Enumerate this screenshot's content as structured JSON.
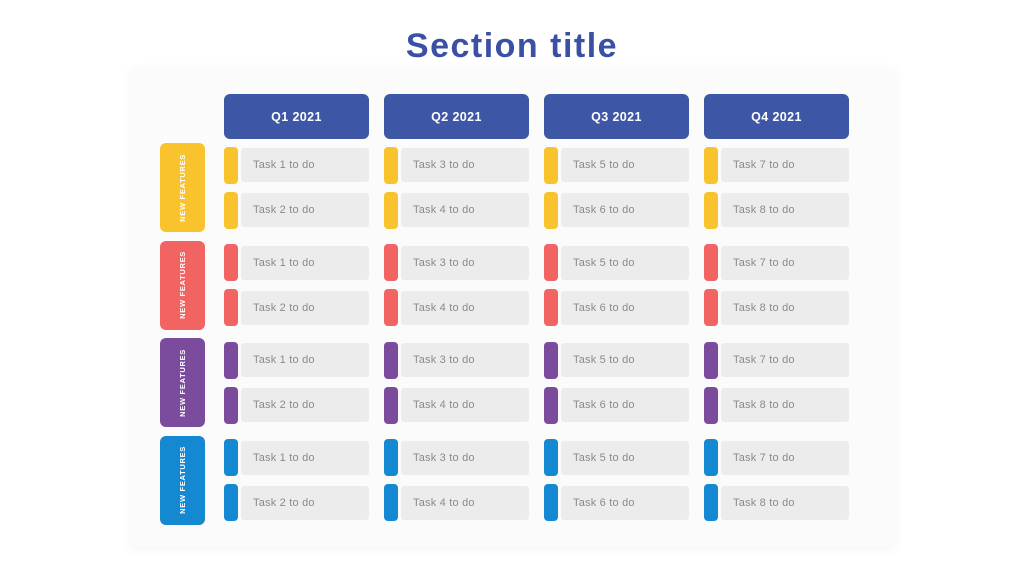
{
  "page": {
    "title": "Section title"
  },
  "colors": {
    "title_text": "#3a50a5",
    "header_bg": "#3e56a6",
    "header_text": "#ffffff",
    "panel_bg": "#fbfbfb",
    "card_bg": "#ececec",
    "task_text": "#8a8a8a",
    "group_yellow": "#f9c32d",
    "group_red": "#f16461",
    "group_purple": "#7b4b9e",
    "group_blue": "#1488d0"
  },
  "columns": [
    {
      "label": "Q1 2021"
    },
    {
      "label": "Q2 2021"
    },
    {
      "label": "Q3 2021"
    },
    {
      "label": "Q4 2021"
    }
  ],
  "groups": [
    {
      "label": "NEW FEATURES",
      "color": "#f9c32d",
      "rows": [
        [
          "Task 1 to do",
          "Task 3 to do",
          "Task 5 to do",
          "Task 7 to do"
        ],
        [
          "Task 2 to do",
          "Task 4 to do",
          "Task 6 to do",
          "Task 8 to do"
        ]
      ]
    },
    {
      "label": "NEW FEATURES",
      "color": "#f16461",
      "rows": [
        [
          "Task 1 to do",
          "Task 3 to do",
          "Task 5 to do",
          "Task 7 to do"
        ],
        [
          "Task 2 to do",
          "Task 4 to do",
          "Task 6 to do",
          "Task 8 to do"
        ]
      ]
    },
    {
      "label": "NEW FEATURES",
      "color": "#7b4b9e",
      "rows": [
        [
          "Task 1 to do",
          "Task 3 to do",
          "Task 5 to do",
          "Task 7 to do"
        ],
        [
          "Task 2 to do",
          "Task 4 to do",
          "Task 6 to do",
          "Task 8 to do"
        ]
      ]
    },
    {
      "label": "NEW FEATURES",
      "color": "#1488d0",
      "rows": [
        [
          "Task 1 to do",
          "Task 3 to do",
          "Task 5 to do",
          "Task 7 to do"
        ],
        [
          "Task 2 to do",
          "Task 4 to do",
          "Task 6 to do",
          "Task 8 to do"
        ]
      ]
    }
  ]
}
